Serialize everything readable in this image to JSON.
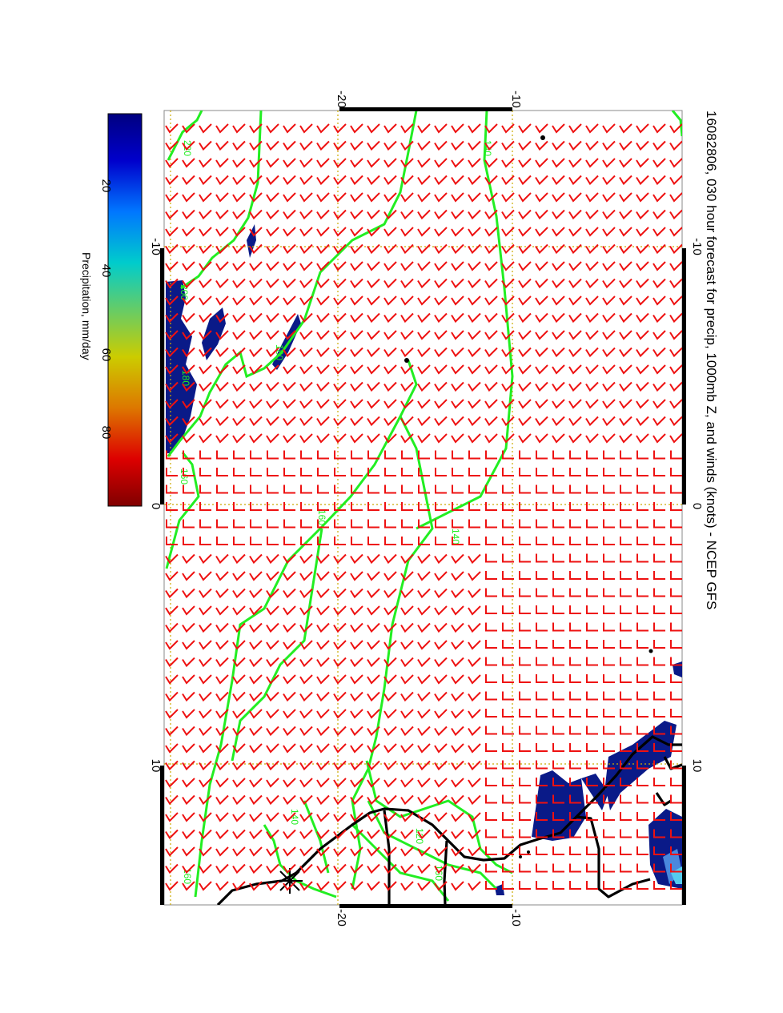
{
  "title": "16082806, 030 hour forecast for precip, 1000mb Z, and winds (knots) - NCEP GFS",
  "colorbar": {
    "label": "Precipitation, mm/day",
    "ticks": [
      "20",
      "40",
      "60",
      "80"
    ],
    "colors": [
      "#000080",
      "#0000ff",
      "#00aaff",
      "#00cccc",
      "#88cc44",
      "#cccc00",
      "#dd7700",
      "#dd0000",
      "#800000"
    ]
  },
  "axes": {
    "top_labels": [
      "-20",
      "-10"
    ],
    "bottom_labels": [
      "-20",
      "-10"
    ],
    "left_labels": [
      "-10",
      "0",
      "10"
    ],
    "right_labels": [
      "-10",
      "0",
      "10"
    ]
  },
  "contours": {
    "color": "#22ee22",
    "labels": [
      "220",
      "200",
      "180",
      "160",
      "140",
      "160",
      "180",
      "140",
      "120",
      "160",
      "140",
      "160"
    ]
  },
  "colors": {
    "wind_barb": "#ee1111",
    "coastline": "#000000",
    "grid": "#ccaa00",
    "precip": "#0a1a88"
  },
  "wind_barbs": "red wind barbs on regular grid",
  "station_marker": "star-icon"
}
